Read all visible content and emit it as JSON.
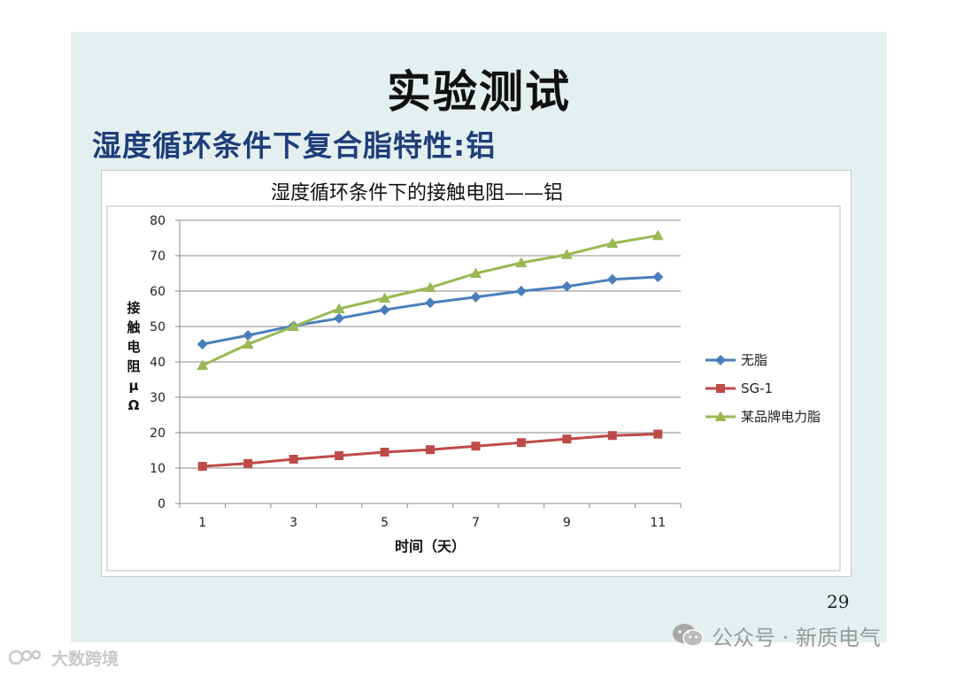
{
  "slide": {
    "title": "实验测试",
    "subtitle": "湿度循环条件下复合脂特性:铝",
    "page_number": "29"
  },
  "watermarks": {
    "right_text": "公众号 · 新质电气",
    "left_text": "大数跨境",
    "icon": "wechat-icon"
  },
  "colors": {
    "slide_background": "#e4f0f0",
    "subtitle": "#1f3d7a",
    "series_blue": "#4a7ebb",
    "series_red": "#be4b48",
    "series_green": "#98b954"
  },
  "chart_data": {
    "type": "line",
    "title": "湿度循环条件下的接触电阻——铝",
    "xlabel": "时间（天）",
    "ylabel": "接触电阻 μΩ",
    "x": [
      1,
      2,
      3,
      4,
      5,
      6,
      7,
      8,
      9,
      10,
      11
    ],
    "x_tick_labels": [
      "1",
      "3",
      "5",
      "7",
      "9",
      "11"
    ],
    "ylim": [
      0,
      80
    ],
    "y_tick_labels": [
      "0",
      "10",
      "20",
      "30",
      "40",
      "50",
      "60",
      "70",
      "80"
    ],
    "grid": true,
    "legend_position": "right",
    "series": [
      {
        "name": "无脂",
        "marker": "diamond",
        "color": "#4a7ebb",
        "values": [
          45,
          47.5,
          50.2,
          52.3,
          54.7,
          56.7,
          58.3,
          60,
          61.3,
          63.3,
          64
        ]
      },
      {
        "name": "SG-1",
        "marker": "square",
        "color": "#be4b48",
        "values": [
          10.5,
          11.3,
          12.5,
          13.5,
          14.5,
          15.2,
          16.2,
          17.2,
          18.2,
          19.2,
          19.6
        ]
      },
      {
        "name": "某品牌电力脂",
        "marker": "triangle",
        "color": "#98b954",
        "values": [
          39,
          45,
          50,
          55,
          58,
          61,
          65,
          68,
          70.3,
          73.5,
          75.7
        ]
      }
    ]
  }
}
